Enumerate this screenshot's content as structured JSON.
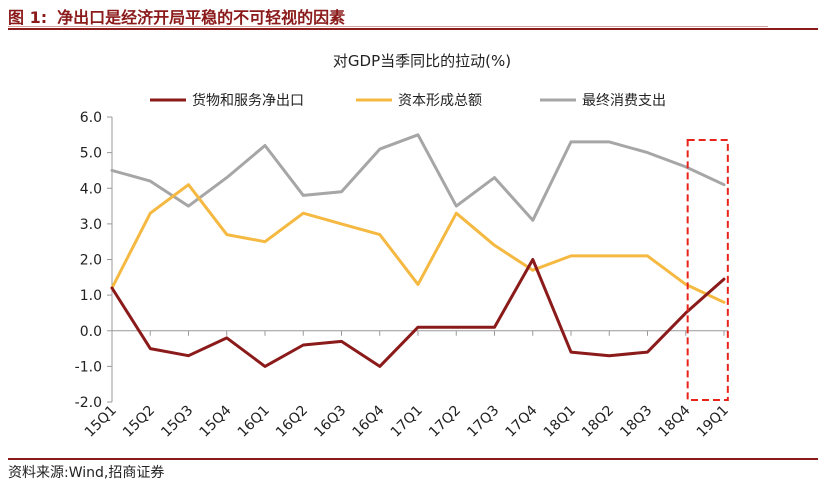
{
  "figure": {
    "number": "图 1:",
    "title": "净出口是经济开局平稳的不可轻视的因素",
    "source": "资料来源:Wind,招商证券"
  },
  "colors": {
    "net_exports": "#8b1a1a",
    "capital_formation": "#f5b942",
    "final_consumption": "#a6a6a6",
    "highlight_box": "#e8231a",
    "brand": "#8b1a1a"
  },
  "chart_data": {
    "type": "line",
    "title": "对GDP当季同比的拉动(%)",
    "xlabel": "",
    "ylabel": "",
    "categories": [
      "15Q1",
      "15Q2",
      "15Q3",
      "15Q4",
      "16Q1",
      "16Q2",
      "16Q3",
      "16Q4",
      "17Q1",
      "17Q2",
      "17Q3",
      "17Q4",
      "18Q1",
      "18Q2",
      "18Q3",
      "18Q4",
      "19Q1"
    ],
    "ylim": [
      -2.0,
      6.0
    ],
    "yticks": [
      "6.0",
      "5.0",
      "4.0",
      "3.0",
      "2.0",
      "1.0",
      "0.0",
      "-1.0",
      "-2.0"
    ],
    "ytick_values": [
      6,
      5,
      4,
      3,
      2,
      1,
      0,
      -1,
      -2
    ],
    "grid": false,
    "legend_position": "top",
    "series": [
      {
        "name": "货物和服务净出口",
        "color_key": "net_exports",
        "values": [
          1.2,
          -0.5,
          -0.7,
          -0.2,
          -1.0,
          -0.4,
          -0.3,
          -1.0,
          0.1,
          0.1,
          0.1,
          2.0,
          -0.6,
          -0.7,
          -0.6,
          0.5,
          1.45
        ]
      },
      {
        "name": "资本形成总额",
        "color_key": "capital_formation",
        "values": [
          1.2,
          3.3,
          4.1,
          2.7,
          2.5,
          3.3,
          3.0,
          2.7,
          1.3,
          3.3,
          2.4,
          1.7,
          2.1,
          2.1,
          2.1,
          1.3,
          0.8
        ]
      },
      {
        "name": "最终消费支出",
        "color_key": "final_consumption",
        "values": [
          4.5,
          4.2,
          3.5,
          4.3,
          5.2,
          3.8,
          3.9,
          5.1,
          5.5,
          3.5,
          4.3,
          3.1,
          5.3,
          5.3,
          5.0,
          4.6,
          4.1
        ]
      }
    ],
    "annotations": [
      {
        "type": "dashed-box",
        "categories": [
          "19Q1"
        ]
      }
    ]
  }
}
